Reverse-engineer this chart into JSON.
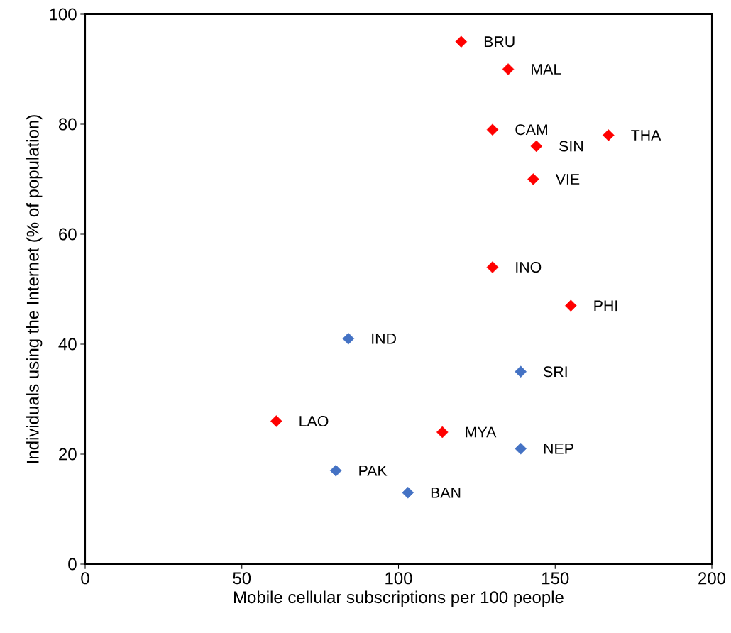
{
  "chart_data": {
    "type": "scatter",
    "xlabel": "Mobile cellular subscriptions per 100 people",
    "ylabel": "Individuals using the Internet (% of population)",
    "xlim": [
      0,
      200
    ],
    "xticks": [
      0,
      50,
      100,
      150,
      200
    ],
    "ylim": [
      0,
      100
    ],
    "yticks": [
      0,
      20,
      40,
      60,
      80,
      100
    ],
    "grid": false,
    "marker": "diamond",
    "series": [
      {
        "color": "#ff0000",
        "x": [
          120,
          135,
          130,
          167,
          144,
          143,
          130,
          155,
          61,
          114
        ],
        "values": [
          95,
          90,
          79,
          78,
          76,
          70,
          54,
          47,
          26,
          24
        ]
      },
      {
        "color": "#4472c4",
        "x": [
          84,
          139,
          139,
          80,
          103
        ],
        "values": [
          41,
          35,
          21,
          17,
          13
        ]
      }
    ],
    "annotations": [
      {
        "text": "BRU",
        "x": 120,
        "y": 95
      },
      {
        "text": "MAL",
        "x": 135,
        "y": 90
      },
      {
        "text": "CAM",
        "x": 130,
        "y": 79
      },
      {
        "text": "THA",
        "x": 167,
        "y": 78
      },
      {
        "text": "SIN",
        "x": 144,
        "y": 76
      },
      {
        "text": "VIE",
        "x": 143,
        "y": 70
      },
      {
        "text": "INO",
        "x": 130,
        "y": 54
      },
      {
        "text": "PHI",
        "x": 155,
        "y": 47
      },
      {
        "text": "LAO",
        "x": 61,
        "y": 26
      },
      {
        "text": "MYA",
        "x": 114,
        "y": 24
      },
      {
        "text": "IND",
        "x": 84,
        "y": 41
      },
      {
        "text": "SRI",
        "x": 139,
        "y": 35
      },
      {
        "text": "NEP",
        "x": 139,
        "y": 21
      },
      {
        "text": "PAK",
        "x": 80,
        "y": 17
      },
      {
        "text": "BAN",
        "x": 103,
        "y": 13
      }
    ]
  }
}
